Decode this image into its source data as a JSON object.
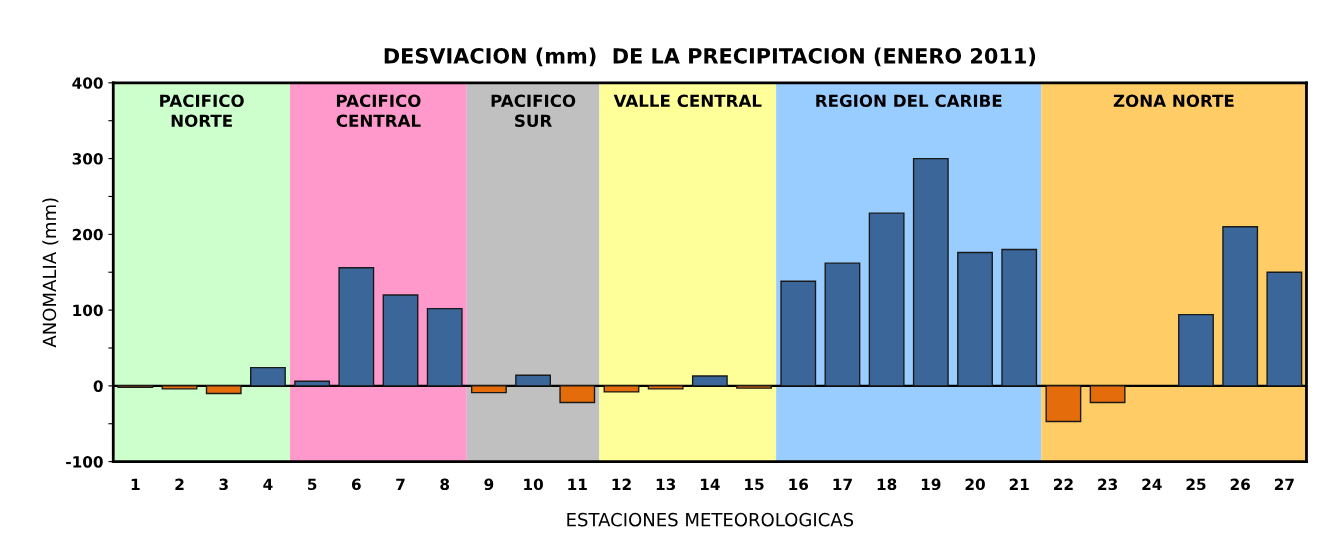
{
  "chart_data": {
    "type": "bar",
    "title": "DESVIACION (mm)  DE LA PRECIPITACION (ENERO 2011)",
    "xlabel": "ESTACIONES METEOROLOGICAS",
    "ylabel": "ANOMALIA (mm)",
    "categories": [
      "1",
      "2",
      "3",
      "4",
      "5",
      "6",
      "7",
      "8",
      "9",
      "10",
      "11",
      "12",
      "13",
      "14",
      "15",
      "16",
      "17",
      "18",
      "19",
      "20",
      "21",
      "22",
      "23",
      "24",
      "25",
      "26",
      "27"
    ],
    "values": [
      -2,
      -4,
      -10,
      24,
      6,
      156,
      120,
      102,
      -9,
      14,
      -22,
      -8,
      -4,
      13,
      -3,
      138,
      162,
      228,
      300,
      176,
      180,
      -47,
      -22,
      null,
      94,
      210,
      150
    ],
    "colors": [
      "#e46c0a",
      "#e46c0a",
      "#e46c0a",
      "#3a6699",
      "#3a6699",
      "#3a6699",
      "#3a6699",
      "#3a6699",
      "#e46c0a",
      "#3a6699",
      "#e46c0a",
      "#e46c0a",
      "#e46c0a",
      "#3a6699",
      "#e46c0a",
      "#3a6699",
      "#3a6699",
      "#3a6699",
      "#3a6699",
      "#3a6699",
      "#3a6699",
      "#e46c0a",
      "#e46c0a",
      null,
      "#3a6699",
      "#3a6699",
      "#3a6699"
    ],
    "ylim": [
      -100,
      400
    ],
    "yticks": [
      -100,
      {
        "value": -50,
        "label": null
      },
      0,
      {
        "value": 50,
        "label": null
      },
      100,
      {
        "value": 150,
        "label": null
      },
      200,
      {
        "value": 250,
        "label": null
      },
      300,
      {
        "value": 350,
        "label": null
      },
      400
    ],
    "bands": [
      {
        "axis": "x",
        "from": "1",
        "to": "4",
        "label": "PACIFICO\nNORTE",
        "color": "#ccffcc"
      },
      {
        "axis": "x",
        "from": "5",
        "to": "8",
        "label": "PACIFICO\nCENTRAL",
        "color": "#ff99cc"
      },
      {
        "axis": "x",
        "from": "9",
        "to": "11",
        "label": "PACIFICO\nSUR",
        "color": "#c0c0c0"
      },
      {
        "axis": "x",
        "from": "12",
        "to": "15",
        "label": "VALLE CENTRAL",
        "color": "#ffff99"
      },
      {
        "axis": "x",
        "from": "16",
        "to": "21",
        "label": "REGION DEL CARIBE",
        "color": "#99ccff"
      },
      {
        "axis": "x",
        "from": "22",
        "to": "27",
        "label": "ZONA NORTE",
        "color": "#ffcc66"
      }
    ],
    "legend": false
  }
}
